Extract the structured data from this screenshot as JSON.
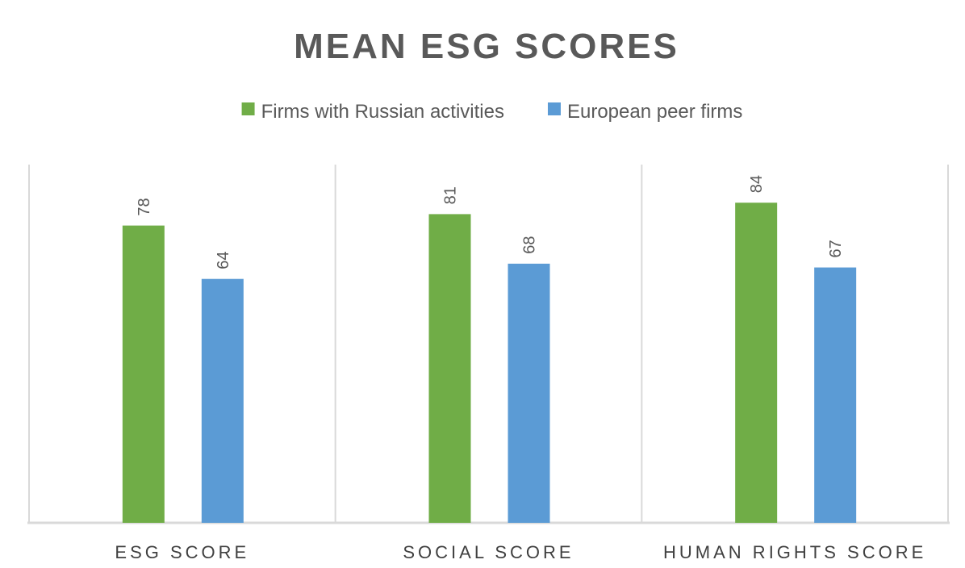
{
  "chart_data": {
    "type": "bar",
    "title": "MEAN ESG SCORES",
    "categories": [
      "ESG SCORE",
      "SOCIAL SCORE",
      "HUMAN RIGHTS SCORE"
    ],
    "series": [
      {
        "name": "Firms with Russian activities",
        "values": [
          78,
          81,
          84
        ],
        "color": "#70AD47"
      },
      {
        "name": "European peer firms",
        "values": [
          64,
          68,
          67
        ],
        "color": "#5B9BD5"
      }
    ],
    "ylim": [
      0,
      94
    ],
    "grid": false,
    "legend_position": "top",
    "data_labels": true,
    "colors": {
      "text": "#595959",
      "axis": "#d9d9d9"
    }
  }
}
